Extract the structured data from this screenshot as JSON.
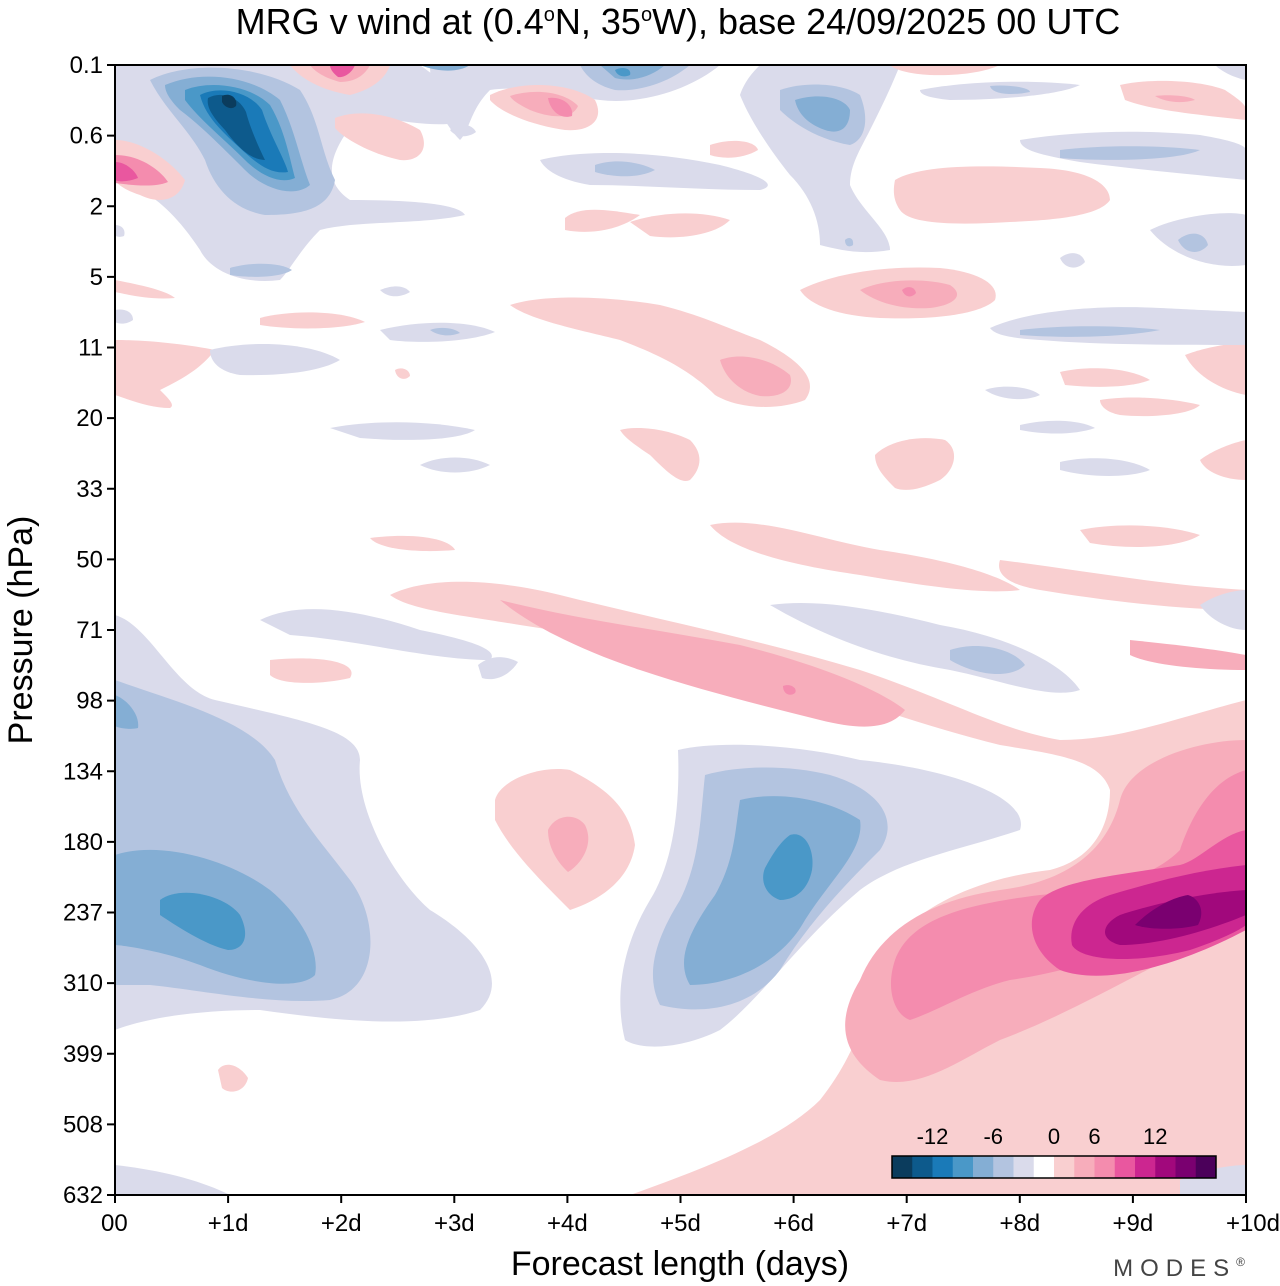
{
  "chart_data": {
    "type": "heatmap",
    "title": "MRG v wind at (0.4°N, 35°W),  base 24/09/2025  00 UTC",
    "title_parts": {
      "prefix": "MRG v wind at (0.4",
      "deg1": "o",
      "lat": "N, 35",
      "deg2": "o",
      "rest": "W),  base 24/09/2025  00 UTC"
    },
    "xlabel": "Forecast length (days)",
    "ylabel": "Pressure (hPa)",
    "xlim": [
      0,
      10
    ],
    "x_ticks": [
      "00",
      "+1d",
      "+2d",
      "+3d",
      "+4d",
      "+5d",
      "+6d",
      "+7d",
      "+8d",
      "+9d",
      "+10d"
    ],
    "y_ticks": [
      "0.1",
      "0.6",
      "2",
      "5",
      "11",
      "20",
      "33",
      "50",
      "71",
      "98",
      "134",
      "180",
      "237",
      "310",
      "399",
      "508",
      "632"
    ],
    "colorbar": {
      "labels": [
        "-12",
        "-6",
        "0",
        "6",
        "12"
      ],
      "label_values": [
        -12,
        -6,
        0,
        6,
        12
      ],
      "boundaries": [
        -16,
        -14,
        -12,
        -10,
        -8,
        -6,
        -4,
        -2,
        2,
        4,
        6,
        8,
        10,
        12,
        14,
        16
      ],
      "colors": [
        "#0b3c5d",
        "#0d5a8c",
        "#1a7ab8",
        "#4a98c8",
        "#84aed4",
        "#b3c4e0",
        "#dadbeb",
        "#ffffff",
        "#f9cfd0",
        "#f7adbb",
        "#f48cae",
        "#e9579f",
        "#cc2690",
        "#a1087c",
        "#7a0070",
        "#4b005a"
      ]
    },
    "features": [
      {
        "sign": "negative",
        "x_days": 1.0,
        "p_hpa": 0.3,
        "peak": -16
      },
      {
        "sign": "negative",
        "x_days": 0.9,
        "p_hpa": 237,
        "peak": -10
      },
      {
        "sign": "negative",
        "x_days": 6.0,
        "p_hpa": 210,
        "peak": -10
      },
      {
        "sign": "negative",
        "x_days": 5.9,
        "p_hpa": 0.4,
        "peak": -8
      },
      {
        "sign": "positive",
        "x_days": 9.5,
        "p_hpa": 237,
        "peak": 16
      },
      {
        "sign": "positive",
        "x_days": 6.0,
        "p_hpa": 98,
        "peak": 8
      },
      {
        "sign": "positive",
        "x_days": 7.0,
        "p_hpa": 5,
        "peak": 10
      },
      {
        "sign": "positive",
        "x_days": 2.0,
        "p_hpa": 0.1,
        "peak": 10
      },
      {
        "sign": "positive",
        "x_days": 0.2,
        "p_hpa": 1.3,
        "peak": 10
      },
      {
        "sign": "positive",
        "x_days": 4.0,
        "p_hpa": 180,
        "peak": 6
      }
    ]
  },
  "brand": "MODES",
  "brand_mark": "®"
}
